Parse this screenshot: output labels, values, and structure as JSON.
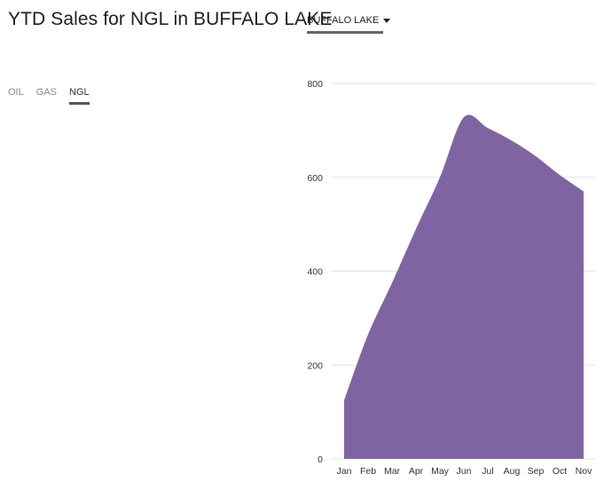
{
  "header": {
    "title": "YTD Sales for NGL in BUFFALO LAKE",
    "location_selected": "BUFFALO LAKE"
  },
  "tabs": [
    {
      "label": "OIL",
      "active": false
    },
    {
      "label": "GAS",
      "active": false
    },
    {
      "label": "NGL",
      "active": true
    }
  ],
  "colors": {
    "area_fill": "#8064a2",
    "gridline": "#e3e3e3"
  },
  "chart_data": {
    "type": "area",
    "title": "YTD Sales for NGL in BUFFALO LAKE",
    "categories": [
      "Jan",
      "Feb",
      "Mar",
      "Apr",
      "May",
      "Jun",
      "Jul",
      "Aug",
      "Sep",
      "Oct",
      "Nov"
    ],
    "series": [
      {
        "name": "NGL",
        "values": [
          125,
          265,
          375,
          490,
          600,
          728,
          705,
          678,
          645,
          605,
          570
        ]
      }
    ],
    "y_ticks": [
      0,
      200,
      400,
      600,
      800
    ],
    "ylim": [
      0,
      800
    ],
    "xlabel": "",
    "ylabel": "",
    "grid": true
  }
}
